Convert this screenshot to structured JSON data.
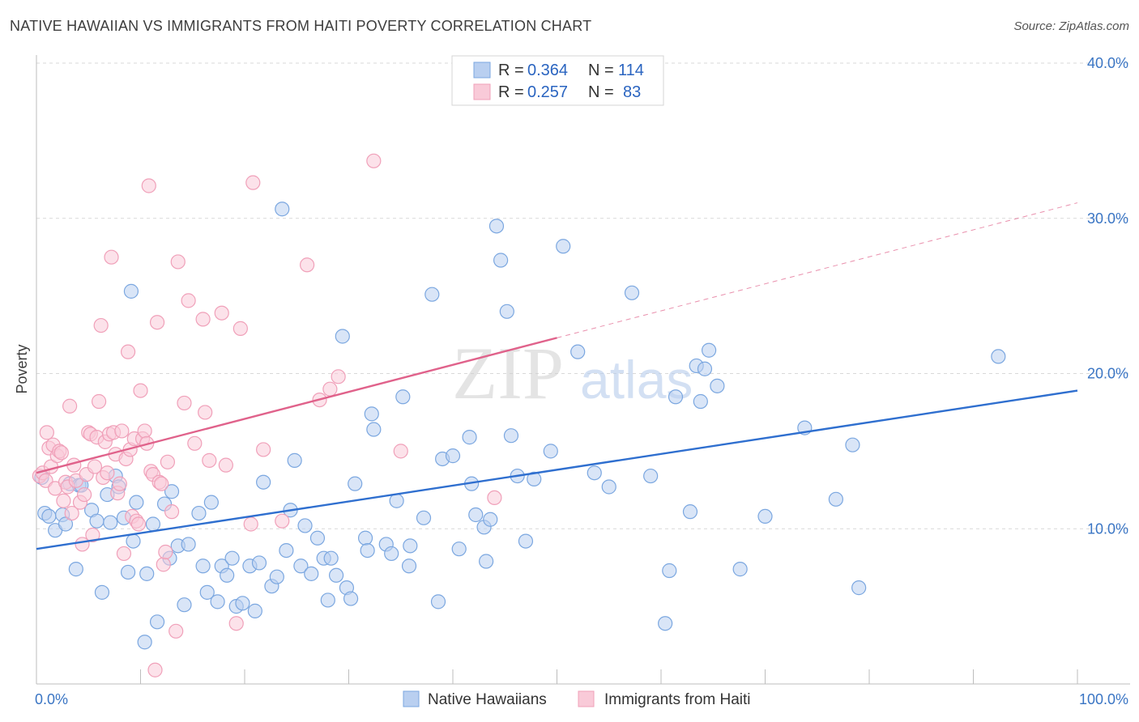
{
  "title": "NATIVE HAWAIIAN VS IMMIGRANTS FROM HAITI POVERTY CORRELATION CHART",
  "source": "Source: ZipAtlas.com",
  "watermark": "ZIPatlas",
  "chart_data": {
    "type": "scatter",
    "xlabel": "",
    "ylabel": "Poverty",
    "xlim": [
      0,
      100
    ],
    "ylim": [
      0,
      40
    ],
    "x_tick_labels": [
      "0.0%",
      "100.0%"
    ],
    "y_tick_values": [
      10,
      20,
      30,
      40
    ],
    "y_tick_labels": [
      "10.0%",
      "20.0%",
      "30.0%",
      "40.0%"
    ],
    "grid": true,
    "legend_position": "top-center",
    "stats": [
      {
        "r_label": "R =",
        "r_value": "0.364",
        "n_label": "N =",
        "n_value": "114"
      },
      {
        "r_label": "R =",
        "r_value": "0.257",
        "n_label": "N =",
        "n_value": "83"
      }
    ],
    "series": [
      {
        "name": "Native Hawaiians",
        "color": "#7ba7e0",
        "fill": "#b9cff0",
        "line_color": "#2f6fcf",
        "trend": {
          "x0": 0,
          "y0": 8.7,
          "x1": 100,
          "y1": 18.9
        },
        "points": [
          [
            0.5,
            13.3
          ],
          [
            0.8,
            11.0
          ],
          [
            1.2,
            10.8
          ],
          [
            1.8,
            9.9
          ],
          [
            2.5,
            10.9
          ],
          [
            2.8,
            10.3
          ],
          [
            3.2,
            12.9
          ],
          [
            3.8,
            7.4
          ],
          [
            4.1,
            12.8
          ],
          [
            4.3,
            12.8
          ],
          [
            5.3,
            11.2
          ],
          [
            5.8,
            10.5
          ],
          [
            6.3,
            5.9
          ],
          [
            6.8,
            12.2
          ],
          [
            7.1,
            10.4
          ],
          [
            7.6,
            13.4
          ],
          [
            7.9,
            12.7
          ],
          [
            8.4,
            10.7
          ],
          [
            8.8,
            7.2
          ],
          [
            9.1,
            25.3
          ],
          [
            9.3,
            9.2
          ],
          [
            9.6,
            11.7
          ],
          [
            10.4,
            2.7
          ],
          [
            10.6,
            7.1
          ],
          [
            11.2,
            10.3
          ],
          [
            11.6,
            4.0
          ],
          [
            12.3,
            11.6
          ],
          [
            12.8,
            8.1
          ],
          [
            13.0,
            12.4
          ],
          [
            13.6,
            8.9
          ],
          [
            14.2,
            5.1
          ],
          [
            14.6,
            9.0
          ],
          [
            15.6,
            11.0
          ],
          [
            16.0,
            7.6
          ],
          [
            16.4,
            5.9
          ],
          [
            16.8,
            11.7
          ],
          [
            17.4,
            5.3
          ],
          [
            17.8,
            7.6
          ],
          [
            18.3,
            7.0
          ],
          [
            18.8,
            8.1
          ],
          [
            19.2,
            5.0
          ],
          [
            19.8,
            5.2
          ],
          [
            20.5,
            7.6
          ],
          [
            21.0,
            4.7
          ],
          [
            21.4,
            7.8
          ],
          [
            21.8,
            13.0
          ],
          [
            22.6,
            6.3
          ],
          [
            23.1,
            6.9
          ],
          [
            23.6,
            30.6
          ],
          [
            24.0,
            8.6
          ],
          [
            24.4,
            11.2
          ],
          [
            24.8,
            14.4
          ],
          [
            25.4,
            7.6
          ],
          [
            25.8,
            10.2
          ],
          [
            26.4,
            7.1
          ],
          [
            27.0,
            9.4
          ],
          [
            27.6,
            8.1
          ],
          [
            28.0,
            5.4
          ],
          [
            28.3,
            8.1
          ],
          [
            28.8,
            7.0
          ],
          [
            29.4,
            22.4
          ],
          [
            29.8,
            6.2
          ],
          [
            30.2,
            5.5
          ],
          [
            30.6,
            12.9
          ],
          [
            31.6,
            9.4
          ],
          [
            31.8,
            8.6
          ],
          [
            32.2,
            17.4
          ],
          [
            32.4,
            16.4
          ],
          [
            33.6,
            9.0
          ],
          [
            34.1,
            8.4
          ],
          [
            34.6,
            11.8
          ],
          [
            35.2,
            18.5
          ],
          [
            35.8,
            7.6
          ],
          [
            35.9,
            8.9
          ],
          [
            37.2,
            10.7
          ],
          [
            38.0,
            25.1
          ],
          [
            38.6,
            5.3
          ],
          [
            39.0,
            14.5
          ],
          [
            40.0,
            14.7
          ],
          [
            40.6,
            8.7
          ],
          [
            41.6,
            15.9
          ],
          [
            41.8,
            12.9
          ],
          [
            42.2,
            10.9
          ],
          [
            43.0,
            10.1
          ],
          [
            43.2,
            7.9
          ],
          [
            43.6,
            10.6
          ],
          [
            44.2,
            29.5
          ],
          [
            44.6,
            27.3
          ],
          [
            45.2,
            24.0
          ],
          [
            45.6,
            16.0
          ],
          [
            46.2,
            13.4
          ],
          [
            47.0,
            9.2
          ],
          [
            47.8,
            13.2
          ],
          [
            49.4,
            15.0
          ],
          [
            50.6,
            28.2
          ],
          [
            52.0,
            21.4
          ],
          [
            53.6,
            13.6
          ],
          [
            55.0,
            12.7
          ],
          [
            57.2,
            25.2
          ],
          [
            59.0,
            13.4
          ],
          [
            60.4,
            3.9
          ],
          [
            60.8,
            7.3
          ],
          [
            61.4,
            18.5
          ],
          [
            62.8,
            11.1
          ],
          [
            63.4,
            20.5
          ],
          [
            63.8,
            18.2
          ],
          [
            64.2,
            20.3
          ],
          [
            64.6,
            21.5
          ],
          [
            65.4,
            19.2
          ],
          [
            67.6,
            7.4
          ],
          [
            70.0,
            10.8
          ],
          [
            73.8,
            16.5
          ],
          [
            76.8,
            11.9
          ],
          [
            78.4,
            15.4
          ],
          [
            79.0,
            6.2
          ],
          [
            92.4,
            21.1
          ]
        ]
      },
      {
        "name": "Immigrants from Haiti",
        "color": "#f0a0b9",
        "fill": "#f9cad8",
        "line_color": "#e0628b",
        "trend": {
          "x0": 0,
          "y0": 13.6,
          "x1": 50,
          "y1": 22.3
        },
        "trend_dashed": {
          "x0": 50,
          "y0": 22.3,
          "x1": 100,
          "y1": 31.0
        },
        "points": [
          [
            0.3,
            13.4
          ],
          [
            0.6,
            13.6
          ],
          [
            0.9,
            13.1
          ],
          [
            1.0,
            16.2
          ],
          [
            1.2,
            15.2
          ],
          [
            1.4,
            14.0
          ],
          [
            1.6,
            15.4
          ],
          [
            1.8,
            12.6
          ],
          [
            2.0,
            14.7
          ],
          [
            2.2,
            15.0
          ],
          [
            2.4,
            14.9
          ],
          [
            2.6,
            11.8
          ],
          [
            2.8,
            13.0
          ],
          [
            3.0,
            12.7
          ],
          [
            3.2,
            17.9
          ],
          [
            3.4,
            11.0
          ],
          [
            3.6,
            14.1
          ],
          [
            3.8,
            13.1
          ],
          [
            4.2,
            11.7
          ],
          [
            4.4,
            9.0
          ],
          [
            4.6,
            12.2
          ],
          [
            4.8,
            13.5
          ],
          [
            5.0,
            16.2
          ],
          [
            5.2,
            16.1
          ],
          [
            5.4,
            9.6
          ],
          [
            5.6,
            14.0
          ],
          [
            5.8,
            15.9
          ],
          [
            6.0,
            18.2
          ],
          [
            6.2,
            23.1
          ],
          [
            6.4,
            13.3
          ],
          [
            6.6,
            15.6
          ],
          [
            6.8,
            13.6
          ],
          [
            7.0,
            16.1
          ],
          [
            7.2,
            27.5
          ],
          [
            7.4,
            16.2
          ],
          [
            7.6,
            14.8
          ],
          [
            7.8,
            12.3
          ],
          [
            8.0,
            12.9
          ],
          [
            8.2,
            16.3
          ],
          [
            8.4,
            8.4
          ],
          [
            8.6,
            14.5
          ],
          [
            8.8,
            21.4
          ],
          [
            9.0,
            15.1
          ],
          [
            9.2,
            10.8
          ],
          [
            9.4,
            15.8
          ],
          [
            9.6,
            10.5
          ],
          [
            9.8,
            10.3
          ],
          [
            10.0,
            18.9
          ],
          [
            10.2,
            15.8
          ],
          [
            10.4,
            16.3
          ],
          [
            10.6,
            15.5
          ],
          [
            10.8,
            32.1
          ],
          [
            11.0,
            13.7
          ],
          [
            11.2,
            13.5
          ],
          [
            11.4,
            0.9
          ],
          [
            11.6,
            23.3
          ],
          [
            11.8,
            13.0
          ],
          [
            12.0,
            12.9
          ],
          [
            12.2,
            7.7
          ],
          [
            12.4,
            8.5
          ],
          [
            12.6,
            14.3
          ],
          [
            13.0,
            11.1
          ],
          [
            13.4,
            3.4
          ],
          [
            13.6,
            27.2
          ],
          [
            14.2,
            18.1
          ],
          [
            14.6,
            24.7
          ],
          [
            15.2,
            15.5
          ],
          [
            16.0,
            23.5
          ],
          [
            16.2,
            17.5
          ],
          [
            16.6,
            14.4
          ],
          [
            17.8,
            23.9
          ],
          [
            18.2,
            14.1
          ],
          [
            19.2,
            3.9
          ],
          [
            19.6,
            22.9
          ],
          [
            20.6,
            10.3
          ],
          [
            20.8,
            32.3
          ],
          [
            21.8,
            15.1
          ],
          [
            23.6,
            10.5
          ],
          [
            26.0,
            27.0
          ],
          [
            27.2,
            18.3
          ],
          [
            28.2,
            19.0
          ],
          [
            29.0,
            19.8
          ],
          [
            32.4,
            33.7
          ],
          [
            35.0,
            15.0
          ],
          [
            44.0,
            12.0
          ]
        ]
      }
    ]
  }
}
